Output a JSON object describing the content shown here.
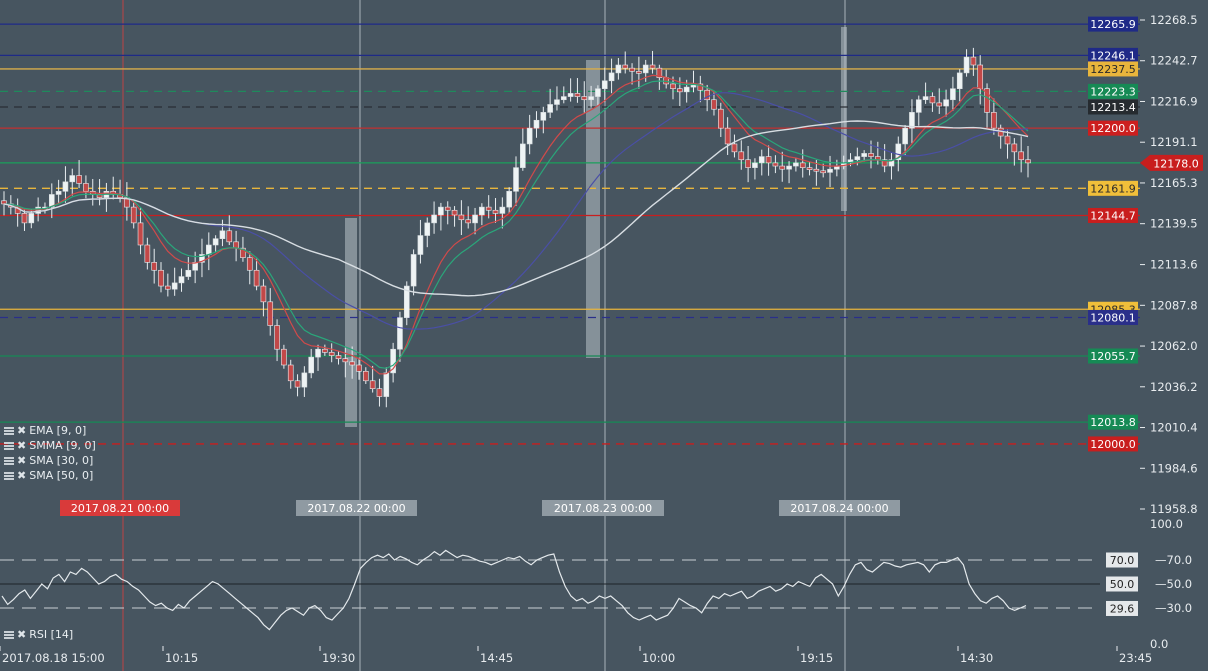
{
  "chart_data": {
    "type": "candlestick",
    "price_axis": {
      "ticks": [
        "12268.5",
        "12242.7",
        "12216.9",
        "12191.1",
        "12165.3",
        "12139.5",
        "12113.6",
        "12087.8",
        "12062.0",
        "12036.2",
        "12010.4",
        "11984.6",
        "11958.8"
      ],
      "ylim": [
        11958.8,
        12268.5
      ]
    },
    "current_price": "12178.0",
    "levels": [
      {
        "label": "12265.9",
        "value": 12265.9,
        "color": "#1f2a87",
        "style": "solid",
        "tag_bg": "#1f2a87"
      },
      {
        "label": "12246.1",
        "value": 12246.1,
        "color": "#1f2a87",
        "style": "solid",
        "tag_bg": "#1f2a87"
      },
      {
        "label": "12237.5",
        "value": 12237.5,
        "color": "#d9ad4a",
        "style": "solid",
        "tag_bg": "#e8b53c"
      },
      {
        "label": "12223.3",
        "value": 12223.3,
        "color": "#1f8a5c",
        "style": "dashed",
        "tag_bg": "#168a55"
      },
      {
        "label": "12213.4",
        "value": 12213.4,
        "color": "#2a2f35",
        "style": "dashed",
        "tag_bg": "#262b30"
      },
      {
        "label": "12200.0",
        "value": 12200.0,
        "color": "#c23030",
        "style": "solid",
        "tag_bg": "#cc1f1f"
      },
      {
        "label": "12178.0",
        "value": 12178.0,
        "color": "#1aa05a",
        "style": "solid",
        "tag_bg": "#c81e1e"
      },
      {
        "label": "12161.9",
        "value": 12161.9,
        "color": "#e8b53c",
        "style": "dashed",
        "tag_bg": "#f0bf3a"
      },
      {
        "label": "12144.7",
        "value": 12144.7,
        "color": "#c81e1e",
        "style": "solid",
        "tag_bg": "#c81e1e"
      },
      {
        "label": "12085.3",
        "value": 12085.3,
        "color": "#e8b53c",
        "style": "solid",
        "tag_bg": "#f0bf3a"
      },
      {
        "label": "12080.1",
        "value": 12080.1,
        "color": "#2a2f8a",
        "style": "dashed",
        "tag_bg": "#2a2f8a"
      },
      {
        "label": "12055.7",
        "value": 12055.7,
        "color": "#168a55",
        "style": "solid",
        "tag_bg": "#168a55"
      },
      {
        "label": "12013.8",
        "value": 12013.8,
        "color": "#168a55",
        "style": "solid",
        "tag_bg": "#168a55"
      },
      {
        "label": "12000.0",
        "value": 12000.0,
        "color": "#c81e1e",
        "style": "dashed",
        "tag_bg": "#c81e1e"
      }
    ],
    "date_labels": [
      {
        "label": "2017.08.21 00:00",
        "bg": "#d93a3a"
      },
      {
        "label": "2017.08.22 00:00",
        "bg": "#8f9aa2"
      },
      {
        "label": "2017.08.23 00:00",
        "bg": "#8f9aa2"
      },
      {
        "label": "2017.08.24 00:00",
        "bg": "#8f9aa2"
      }
    ],
    "time_axis": [
      "2017.08.18 15:00",
      "10:15",
      "19:30",
      "14:45",
      "10:00",
      "19:15",
      "14:30",
      "23:45"
    ],
    "indicators": [
      "EMA [9, 0]",
      "SMMA [9, 0]",
      "SMA [30, 0]",
      "SMA [50, 0]"
    ],
    "rsi": {
      "name": "RSI [14]",
      "axis": [
        "100.0",
        "70.0",
        "50.0",
        "30.0",
        "0.0"
      ],
      "tags": [
        "70.0",
        "50.0",
        "29.6"
      ],
      "ylim": [
        0,
        100
      ],
      "values": [
        40,
        33,
        37,
        42,
        45,
        38,
        44,
        50,
        46,
        55,
        58,
        52,
        60,
        58,
        63,
        60,
        55,
        50,
        52,
        56,
        58,
        54,
        52,
        48,
        45,
        40,
        35,
        32,
        34,
        30,
        28,
        33,
        30,
        36,
        40,
        44,
        48,
        52,
        50,
        46,
        42,
        38,
        34,
        30,
        26,
        22,
        16,
        12,
        18,
        24,
        28,
        30,
        27,
        24,
        30,
        32,
        28,
        22,
        20,
        25,
        30,
        38,
        50,
        63,
        68,
        72,
        74,
        72,
        75,
        70,
        73,
        71,
        68,
        66,
        70,
        73,
        77,
        74,
        78,
        75,
        72,
        74,
        73,
        71,
        69,
        68,
        66,
        68,
        70,
        72,
        71,
        73,
        69,
        66,
        70,
        72,
        74,
        75,
        60,
        48,
        40,
        36,
        38,
        34,
        36,
        40,
        38,
        40,
        36,
        32,
        26,
        22,
        20,
        22,
        24,
        20,
        22,
        24,
        30,
        38,
        35,
        32,
        30,
        26,
        34,
        40,
        38,
        42,
        40,
        42,
        44,
        38,
        40,
        44,
        46,
        48,
        44,
        46,
        50,
        48,
        52,
        50,
        48,
        55,
        58,
        54,
        50,
        40,
        48,
        58,
        66,
        68,
        62,
        60,
        64,
        68,
        67,
        65,
        64,
        66,
        67,
        68,
        66,
        60,
        66,
        68,
        68,
        70,
        72,
        66,
        50,
        42,
        36,
        34,
        38,
        40,
        36,
        30,
        28,
        30,
        32
      ]
    },
    "candles_close": [
      12152,
      12150,
      12146,
      12140,
      12146,
      12150,
      12150,
      12158,
      12160,
      12166,
      12170,
      12165,
      12160,
      12158,
      12156,
      12160,
      12158,
      12156,
      12150,
      12140,
      12126,
      12115,
      12110,
      12100,
      12098,
      12102,
      12106,
      12110,
      12115,
      12120,
      12126,
      12130,
      12135,
      12128,
      12124,
      12118,
      12110,
      12100,
      12090,
      12075,
      12060,
      12050,
      12040,
      12036,
      12045,
      12055,
      12060,
      12058,
      12056,
      12054,
      12052,
      12050,
      12046,
      12040,
      12035,
      12030,
      12045,
      12060,
      12080,
      12100,
      12120,
      12132,
      12140,
      12145,
      12150,
      12148,
      12145,
      12142,
      12140,
      12145,
      12150,
      12148,
      12146,
      12150,
      12160,
      12175,
      12190,
      12200,
      12205,
      12210,
      12215,
      12218,
      12220,
      12222,
      12220,
      12218,
      12220,
      12225,
      12230,
      12235,
      12240,
      12238,
      12236,
      12235,
      12240,
      12238,
      12232,
      12228,
      12225,
      12223,
      12226,
      12228,
      12224,
      12218,
      12212,
      12200,
      12190,
      12185,
      12180,
      12175,
      12178,
      12182,
      12178,
      12176,
      12174,
      12176,
      12178,
      12175,
      12174,
      12173,
      12172,
      12174,
      12176,
      12178,
      12180,
      12182,
      12184,
      12182,
      12180,
      12176,
      12180,
      12190,
      12200,
      12210,
      12218,
      12220,
      12216,
      12214,
      12218,
      12225,
      12235,
      12245,
      12240,
      12225,
      12210,
      12200,
      12195,
      12190,
      12185,
      12180,
      12178
    ]
  }
}
